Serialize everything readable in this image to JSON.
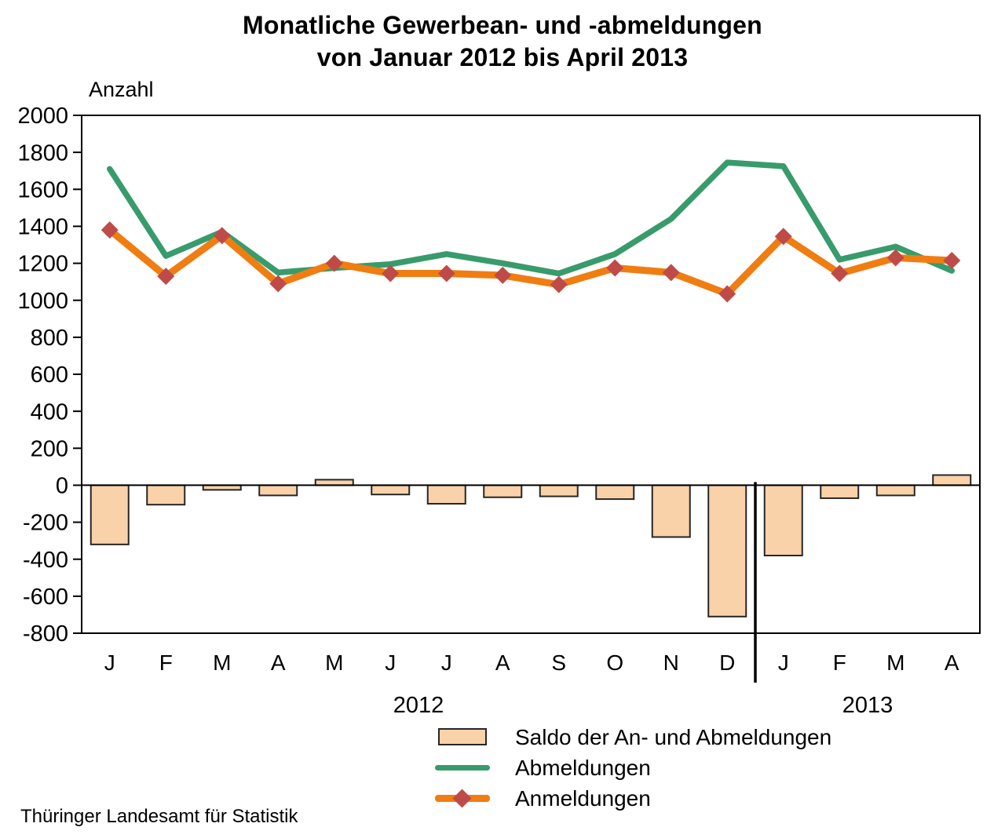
{
  "source": "Thüringer Landesamt für Statistik",
  "colors": {
    "abmeldungen_line": "#389B6B",
    "anmeldungen_line": "#F07D11",
    "anmeldungen_marker": "#BE4B48",
    "saldo_bar_fill": "#F9D2A9",
    "saldo_bar_border": "#262626",
    "axis": "#000000"
  },
  "chart_data": {
    "type": "combo: bar + line",
    "title": "Monatliche Gewerbean- und -abmeldungen",
    "subtitle": "von Januar 2012 bis April 2013",
    "ylabel": "Anzahl",
    "xlabel": "",
    "ylim": [
      -800,
      2000
    ],
    "ytick_step": 200,
    "grid": false,
    "legend_position": "bottom",
    "categories": [
      "J",
      "F",
      "M",
      "A",
      "M",
      "J",
      "J",
      "A",
      "S",
      "O",
      "N",
      "D",
      "J",
      "F",
      "M",
      "A"
    ],
    "year_groups": [
      {
        "label": "2012",
        "months": 12
      },
      {
        "label": "2013",
        "months": 4
      }
    ],
    "series": [
      {
        "name": "Saldo der An- und Abmeldungen",
        "type": "bar",
        "color": "#F9D2A9",
        "border_color": "#262626",
        "values": [
          -320,
          -105,
          -25,
          -55,
          30,
          -50,
          -100,
          -65,
          -60,
          -75,
          -280,
          -710,
          -380,
          -70,
          -55,
          55
        ]
      },
      {
        "name": "Abmeldungen",
        "type": "line",
        "color": "#389B6B",
        "values": [
          1710,
          1240,
          1370,
          1150,
          1175,
          1195,
          1250,
          1200,
          1145,
          1250,
          1440,
          1745,
          1725,
          1220,
          1290,
          1160
        ]
      },
      {
        "name": "Anmeldungen",
        "type": "line",
        "marker": "diamond",
        "color": "#F07D11",
        "marker_color": "#BE4B48",
        "values": [
          1380,
          1130,
          1350,
          1090,
          1200,
          1145,
          1145,
          1135,
          1085,
          1175,
          1150,
          1035,
          1345,
          1145,
          1230,
          1215
        ]
      }
    ]
  }
}
